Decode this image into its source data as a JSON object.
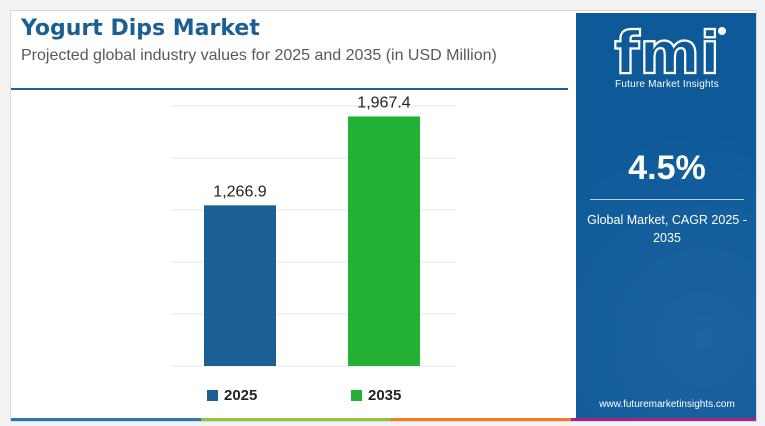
{
  "header": {
    "title": "Yogurt Dips Market",
    "subtitle": "Projected global industry values for 2025 and 2035 (in USD Million)"
  },
  "chart_data": {
    "type": "bar",
    "categories": [
      "2025",
      "2035"
    ],
    "values": [
      1266.9,
      1967.4
    ],
    "value_labels": [
      "1,266.9",
      "1,967.4"
    ],
    "colors": [
      "#1c5f95",
      "#22b133"
    ],
    "title": "",
    "xlabel": "",
    "ylabel": "",
    "ylim": [
      0,
      2050
    ],
    "grid": true,
    "legend": "bottom",
    "legend_entries": [
      "2025",
      "2035"
    ]
  },
  "panel": {
    "logo_text": "fmi",
    "logo_tagline": "Future Market Insights",
    "cagr_value": "4.5%",
    "cagr_label": "Global Market, CAGR 2025 - 2035",
    "website": "www.futuremarketinsights.com",
    "background": "#0e5a99"
  },
  "bottom_bar_colors": [
    "#2b78b8",
    "#8dc63f",
    "#f47b20",
    "#a3238e"
  ]
}
